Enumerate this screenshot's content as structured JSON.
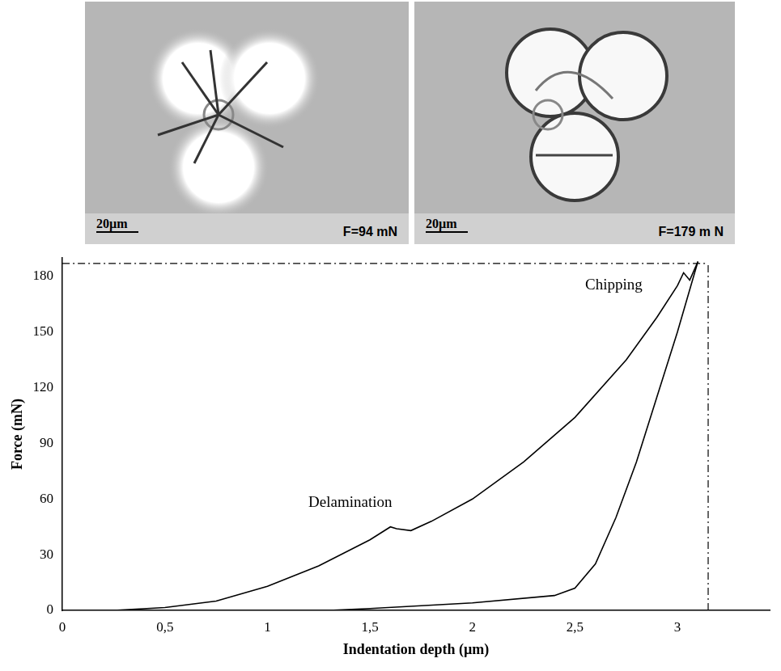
{
  "images": [
    {
      "scale_bar": "20µm",
      "label": "F=94 mN"
    },
    {
      "scale_bar": "20µm",
      "label": "F=179 m N"
    }
  ],
  "chart_data": {
    "type": "line",
    "x_label": "Indentation depth (µm)",
    "y_label": "Force (mN)",
    "xlim": [
      0,
      3.45
    ],
    "xticks": [
      0,
      {
        "value": 0.5,
        "label": "0,5"
      },
      1,
      {
        "value": 1.5,
        "label": "1,5"
      },
      2,
      {
        "value": 2.5,
        "label": "2,5"
      },
      3
    ],
    "ylim": [
      0,
      190
    ],
    "yticks": [
      0,
      30,
      60,
      90,
      120,
      150,
      180
    ],
    "grid": false,
    "series": [
      {
        "color": "#000000",
        "line_style": "solid",
        "x": [
          0.25,
          0.5,
          0.75,
          1.0,
          1.25,
          1.5,
          1.6,
          1.63,
          1.7,
          1.8,
          2.0,
          2.25,
          2.5,
          2.75,
          2.9,
          3.0,
          3.03,
          3.06,
          3.1
        ],
        "values": [
          0,
          1.5,
          5,
          13,
          24,
          38,
          45,
          44,
          43,
          48,
          60,
          80,
          104,
          135,
          158,
          175,
          182,
          178,
          188
        ]
      },
      {
        "color": "#000000",
        "line_style": "solid",
        "x": [
          3.1,
          3.0,
          2.9,
          2.8,
          2.7,
          2.6,
          2.5,
          2.4,
          2.0,
          1.5,
          1.3
        ],
        "values": [
          188,
          150,
          115,
          80,
          50,
          25,
          12,
          8,
          4,
          1,
          0
        ]
      },
      {
        "color": "#000000",
        "line_style": "dashdot",
        "x": [
          0,
          3.15
        ],
        "values": [
          187,
          187
        ]
      },
      {
        "color": "#000000",
        "line_style": "dashdot",
        "x": [
          3.15,
          3.15
        ],
        "values": [
          0,
          187
        ]
      }
    ],
    "annotations": [
      {
        "text": "Delamination",
        "x": 1.2,
        "y": 58
      },
      {
        "text": "Chipping",
        "x": 2.55,
        "y": 175
      }
    ]
  }
}
